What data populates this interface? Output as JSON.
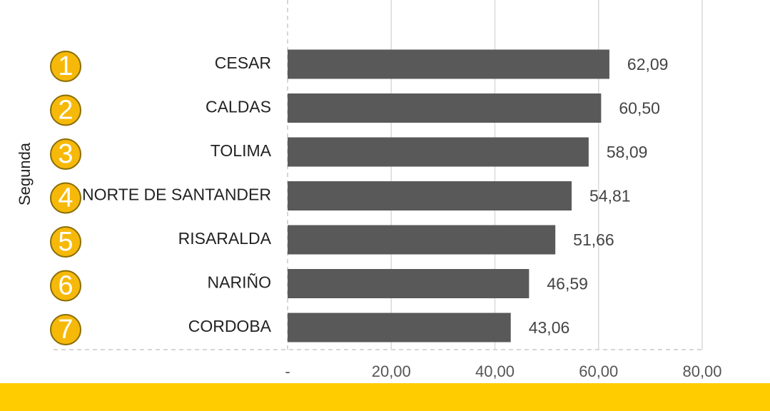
{
  "chart_data": {
    "type": "bar",
    "orientation": "horizontal",
    "y_axis_label": "Segunda",
    "rank_labels": [
      "1",
      "2",
      "3",
      "4",
      "5",
      "6",
      "7"
    ],
    "categories": [
      "CESAR",
      "CALDAS",
      "TOLIMA",
      "NORTE DE SANTANDER",
      "RISARALDA",
      "NARIÑO",
      "CORDOBA"
    ],
    "values": [
      62.09,
      60.5,
      58.09,
      54.81,
      51.66,
      46.59,
      43.06
    ],
    "value_labels": [
      "62,09",
      "60,50",
      "58,09",
      "54,81",
      "51,66",
      "46,59",
      "43,06"
    ],
    "color": "#595959",
    "xlim": [
      0,
      80
    ],
    "xticks": [
      {
        "value": 0,
        "label": "-"
      },
      {
        "value": 20,
        "label": "20,00"
      },
      {
        "value": 40,
        "label": "40,00"
      },
      {
        "value": 60,
        "label": "60,00"
      },
      {
        "value": 80,
        "label": "80,00"
      }
    ],
    "grid": true
  }
}
